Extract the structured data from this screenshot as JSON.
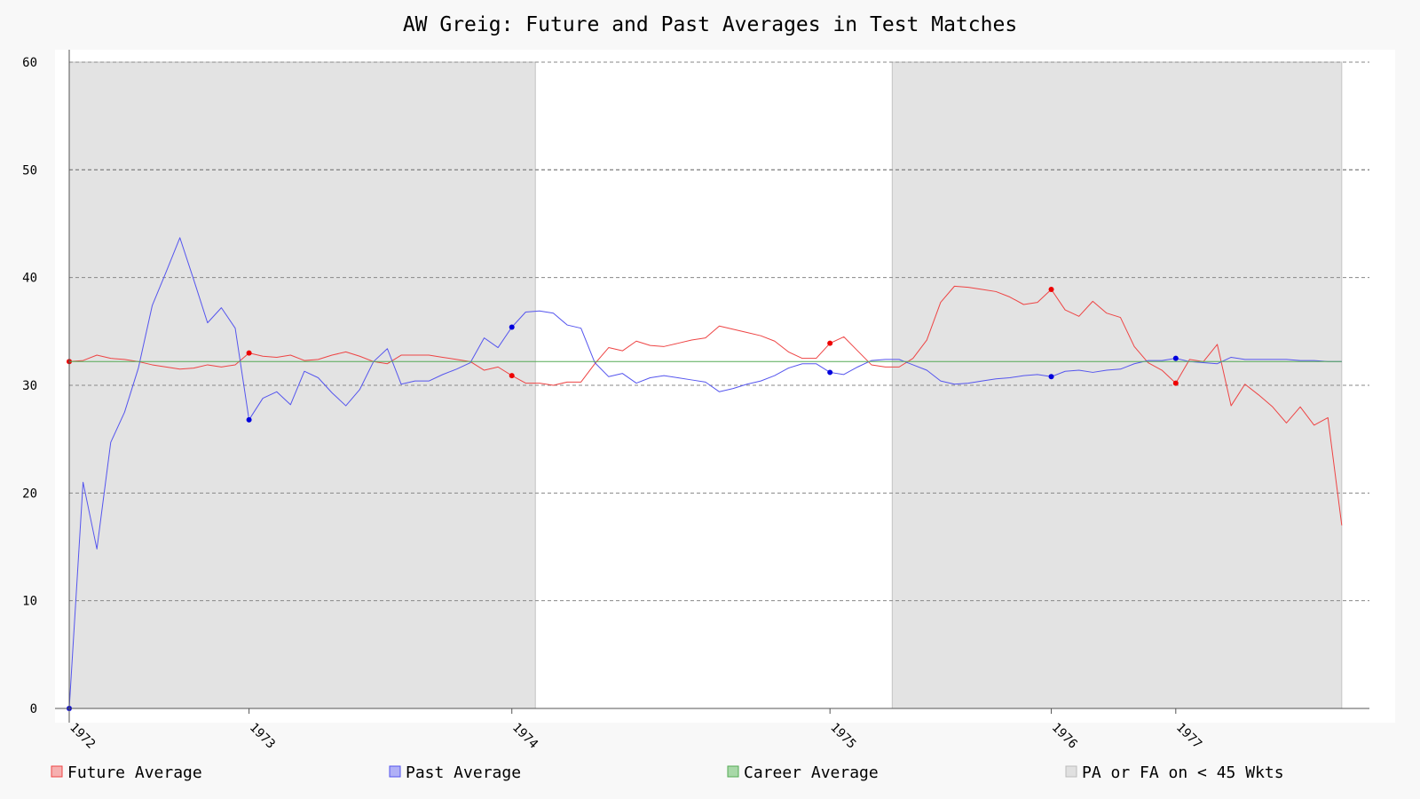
{
  "chart_data": {
    "type": "line",
    "title": "AW Greig: Future and Past Averages in Test Matches",
    "xlabel": "",
    "ylabel": "",
    "xlim": [
      0,
      94
    ],
    "ylim": [
      0,
      60
    ],
    "yticks": [
      0,
      10,
      20,
      30,
      40,
      50,
      60
    ],
    "grid": true,
    "legend_position": "bottom",
    "x_tick_labels": [
      {
        "label": "1972",
        "x": 0
      },
      {
        "label": "1973",
        "x": 13
      },
      {
        "label": "1974",
        "x": 32
      },
      {
        "label": "1975",
        "x": 55
      },
      {
        "label": "1976",
        "x": 71
      },
      {
        "label": "1977",
        "x": 80
      }
    ],
    "shaded_regions": {
      "name": "PA or FA on < 45 Wkts",
      "color": "#e3e3e3",
      "regions": [
        [
          0,
          33.7
        ],
        [
          59.5,
          92
        ]
      ]
    },
    "series": [
      {
        "name": "Future Average",
        "color": "#ee4444",
        "x": [
          0,
          1,
          2,
          3,
          4,
          5,
          6,
          7,
          8,
          9,
          10,
          11,
          12,
          13,
          14,
          15,
          16,
          17,
          18,
          19,
          20,
          21,
          22,
          23,
          24,
          25,
          26,
          27,
          28,
          29,
          30,
          31,
          32,
          33,
          34,
          35,
          36,
          37,
          38,
          39,
          40,
          41,
          42,
          43,
          44,
          45,
          46,
          47,
          48,
          49,
          50,
          51,
          52,
          53,
          54,
          55,
          56,
          57,
          58,
          59,
          60,
          61,
          62,
          63,
          64,
          65,
          66,
          67,
          68,
          69,
          70,
          71,
          72,
          73,
          74,
          75,
          76,
          77,
          78,
          79,
          80,
          81,
          82,
          83,
          84,
          85,
          86,
          87,
          88,
          89,
          90,
          91,
          92
        ],
        "values": [
          32.2,
          32.3,
          32.8,
          32.5,
          32.4,
          32.2,
          31.9,
          31.7,
          31.5,
          31.6,
          31.9,
          31.7,
          31.9,
          33.0,
          32.7,
          32.6,
          32.8,
          32.3,
          32.4,
          32.8,
          33.1,
          32.7,
          32.2,
          32.0,
          32.8,
          32.8,
          32.8,
          32.6,
          32.4,
          32.2,
          31.4,
          31.7,
          30.9,
          30.2,
          30.2,
          30.0,
          30.3,
          30.3,
          32.0,
          33.5,
          33.2,
          34.1,
          33.7,
          33.6,
          33.9,
          34.2,
          34.4,
          35.5,
          35.2,
          34.9,
          34.6,
          34.1,
          33.1,
          32.5,
          32.5,
          33.9,
          34.5,
          33.2,
          31.9,
          31.7,
          31.7,
          32.5,
          34.2,
          37.7,
          39.2,
          39.1,
          38.9,
          38.7,
          38.2,
          37.5,
          37.7,
          38.9,
          37.0,
          36.4,
          37.8,
          36.7,
          36.3,
          33.6,
          32.1,
          31.4,
          30.2,
          32.4,
          32.2,
          33.8,
          28.1,
          30.1,
          29.1,
          28.0,
          26.5,
          28.0,
          26.3,
          27.0,
          17.0
        ],
        "markers": [
          [
            0,
            32.2
          ],
          [
            13,
            33.0
          ],
          [
            32,
            30.9
          ],
          [
            55,
            33.9
          ],
          [
            71,
            38.9
          ],
          [
            80,
            30.2
          ]
        ]
      },
      {
        "name": "Past Average",
        "color": "#5555ee",
        "x": [
          0,
          1,
          2,
          3,
          4,
          5,
          6,
          7,
          8,
          9,
          10,
          11,
          12,
          13,
          14,
          15,
          16,
          17,
          18,
          19,
          20,
          21,
          22,
          23,
          24,
          25,
          26,
          27,
          28,
          29,
          30,
          31,
          32,
          33,
          34,
          35,
          36,
          37,
          38,
          39,
          40,
          41,
          42,
          43,
          44,
          45,
          46,
          47,
          48,
          49,
          50,
          51,
          52,
          53,
          54,
          55,
          56,
          57,
          58,
          59,
          60,
          61,
          62,
          63,
          64,
          65,
          66,
          67,
          68,
          69,
          70,
          71,
          72,
          73,
          74,
          75,
          76,
          77,
          78,
          79,
          80,
          81,
          82,
          83,
          84,
          85,
          86,
          87,
          88,
          89,
          90,
          91,
          92
        ],
        "values": [
          0,
          21.0,
          14.8,
          24.7,
          27.5,
          31.6,
          37.4,
          40.5,
          43.7,
          39.8,
          35.8,
          37.2,
          35.3,
          26.8,
          28.8,
          29.4,
          28.2,
          31.3,
          30.7,
          29.3,
          28.1,
          29.6,
          32.2,
          33.4,
          30.1,
          30.4,
          30.4,
          31.0,
          31.5,
          32.1,
          34.4,
          33.5,
          35.4,
          36.8,
          36.9,
          36.7,
          35.6,
          35.3,
          32.1,
          30.8,
          31.1,
          30.2,
          30.7,
          30.9,
          30.7,
          30.5,
          30.3,
          29.4,
          29.7,
          30.1,
          30.4,
          30.9,
          31.6,
          32.0,
          32.0,
          31.2,
          31.0,
          31.7,
          32.3,
          32.4,
          32.4,
          31.9,
          31.4,
          30.4,
          30.1,
          30.2,
          30.4,
          30.6,
          30.7,
          30.9,
          31.0,
          30.8,
          31.3,
          31.4,
          31.2,
          31.4,
          31.5,
          32.0,
          32.3,
          32.3,
          32.5,
          32.2,
          32.1,
          32.0,
          32.6,
          32.4,
          32.4,
          32.4,
          32.4,
          32.3,
          32.3,
          32.2,
          32.2
        ],
        "markers": [
          [
            0,
            0
          ],
          [
            13,
            26.8
          ],
          [
            32,
            35.4
          ],
          [
            55,
            31.2
          ],
          [
            71,
            30.8
          ],
          [
            80,
            32.5
          ]
        ]
      },
      {
        "name": "Career Average",
        "color": "#55aa55",
        "x": [
          0,
          92
        ],
        "values": [
          32.2,
          32.2
        ]
      }
    ],
    "legend": [
      {
        "label": "Future Average",
        "swatch_fill": "#f6b0b0",
        "swatch_stroke": "#ee4444"
      },
      {
        "label": "Past Average",
        "swatch_fill": "#b0b0f6",
        "swatch_stroke": "#5555ee"
      },
      {
        "label": "Career Average",
        "swatch_fill": "#a8d8a8",
        "swatch_stroke": "#55aa55"
      },
      {
        "label": "PA or FA on < 45 Wkts",
        "swatch_fill": "#e0e0e0",
        "swatch_stroke": "#bbbbbb"
      }
    ]
  }
}
